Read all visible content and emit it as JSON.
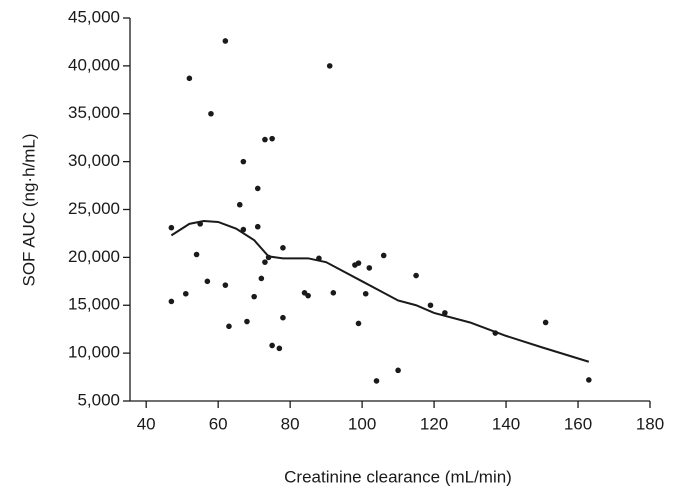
{
  "chart_data": {
    "type": "scatter",
    "xlabel": "Creatinine clearance (mL/min)",
    "ylabel": "SOF AUC (ng·h/mL)",
    "x": [
      47,
      47,
      51,
      52,
      54,
      55,
      57,
      58,
      62,
      62,
      63,
      66,
      67,
      67,
      68,
      70,
      71,
      71,
      72,
      73,
      73,
      74,
      75,
      75,
      77,
      78,
      78,
      84,
      85,
      88,
      91,
      92,
      98,
      99,
      99,
      101,
      102,
      104,
      106,
      110,
      115,
      119,
      123,
      137,
      151,
      163
    ],
    "y": [
      15400,
      23100,
      16200,
      38700,
      20300,
      23500,
      17500,
      35000,
      42600,
      17100,
      12800,
      25500,
      22900,
      30000,
      13300,
      15900,
      23200,
      27200,
      17800,
      32300,
      19500,
      20000,
      10800,
      32400,
      10500,
      13700,
      21000,
      16300,
      16000,
      19900,
      40000,
      16300,
      19200,
      19400,
      13100,
      16200,
      18900,
      7100,
      20200,
      8200,
      18100,
      15000,
      14200,
      12100,
      13200,
      7200
    ],
    "color": "#1a1a1a",
    "fit": {
      "x": [
        47,
        52,
        56,
        60,
        65,
        70,
        74,
        78,
        85,
        90,
        100,
        105,
        110,
        115,
        120,
        130,
        140,
        150,
        163
      ],
      "y": [
        22300,
        23500,
        23800,
        23700,
        23000,
        21800,
        20100,
        19900,
        19900,
        19500,
        17500,
        16500,
        15500,
        15000,
        14200,
        13200,
        11800,
        10600,
        9100
      ],
      "color": "#1a1a1a"
    },
    "xlim": [
      35.5,
      180
    ],
    "ylim": [
      5000,
      45000
    ],
    "xticks": [
      40,
      60,
      80,
      100,
      120,
      140,
      160,
      180
    ],
    "yticks": [
      {
        "value": 5000,
        "label": "5,000"
      },
      {
        "value": 10000,
        "label": "10,000"
      },
      {
        "value": 15000,
        "label": "15,000"
      },
      {
        "value": 20000,
        "label": "20,000"
      },
      {
        "value": 25000,
        "label": "25,000"
      },
      {
        "value": 30000,
        "label": "30,000"
      },
      {
        "value": 35000,
        "label": "35,000"
      },
      {
        "value": 40000,
        "label": "40,000"
      },
      {
        "value": 45000,
        "label": "45,000"
      }
    ]
  }
}
